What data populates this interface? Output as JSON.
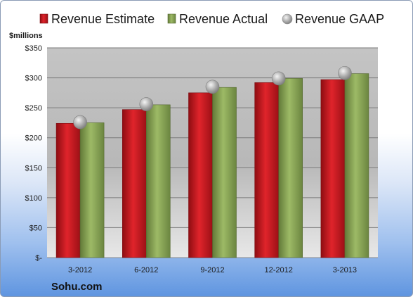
{
  "chart_data": {
    "type": "bar",
    "unit_label": "$millions",
    "source": "Sohu.com",
    "categories": [
      "3-2012",
      "6-2012",
      "9-2012",
      "12-2012",
      "3-2013"
    ],
    "series": [
      {
        "name": "Revenue Estimate",
        "kind": "bar",
        "color": "#c8161d",
        "values": [
          224,
          247,
          275,
          292,
          297
        ]
      },
      {
        "name": "Revenue Actual",
        "kind": "bar",
        "color": "#8aa558",
        "values": [
          225,
          255,
          284,
          299,
          307
        ]
      },
      {
        "name": "Revenue GAAP",
        "kind": "marker",
        "color": "#a6a6a6",
        "values": [
          226,
          256,
          285,
          299,
          308
        ]
      }
    ],
    "y_ticks": [
      {
        "value": 0,
        "label": "$-"
      },
      {
        "value": 50,
        "label": "$50"
      },
      {
        "value": 100,
        "label": "$100"
      },
      {
        "value": 150,
        "label": "$150"
      },
      {
        "value": 200,
        "label": "$200"
      },
      {
        "value": 250,
        "label": "$250"
      },
      {
        "value": 300,
        "label": "$300"
      },
      {
        "value": 350,
        "label": "$350"
      }
    ],
    "ylim": [
      0,
      350
    ],
    "grid": true,
    "legend_position": "top"
  }
}
